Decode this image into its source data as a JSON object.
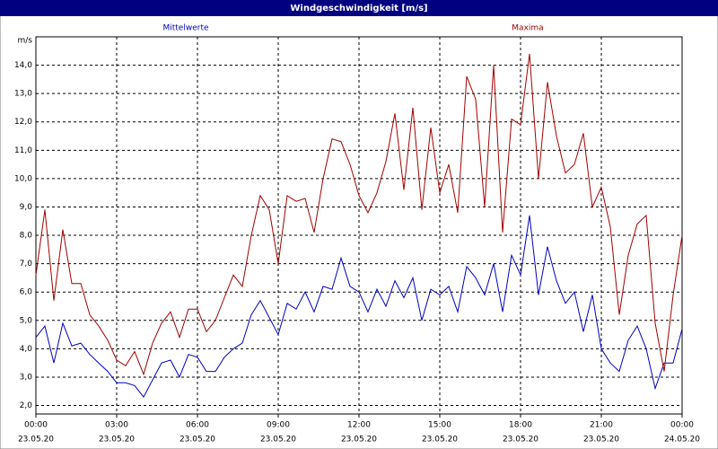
{
  "chart_data": {
    "type": "line",
    "title": "Windgeschwindigkeit [m/s]",
    "y_label": "m/s",
    "x": [
      0,
      20,
      40,
      60,
      80,
      100,
      120,
      140,
      160,
      180,
      200,
      220,
      240,
      260,
      280,
      300,
      320,
      340,
      360,
      380,
      400,
      420,
      440,
      460,
      480,
      500,
      520,
      540,
      560,
      580,
      600,
      620,
      640,
      660,
      680,
      700,
      720,
      740,
      760,
      780,
      800,
      820,
      840,
      860,
      880,
      900,
      920,
      940,
      960,
      980,
      1000,
      1020,
      1040,
      1060,
      1080,
      1100,
      1120,
      1140,
      1160,
      1180,
      1200,
      1220,
      1240,
      1260,
      1280,
      1300,
      1320,
      1340,
      1360,
      1380,
      1400,
      1420,
      1440
    ],
    "series": [
      {
        "name": "Mittelwerte",
        "color": "#0000c0",
        "values": [
          4.4,
          4.8,
          3.5,
          4.9,
          4.1,
          4.2,
          3.8,
          3.5,
          3.2,
          2.8,
          2.8,
          2.7,
          2.3,
          2.9,
          3.5,
          3.6,
          3.0,
          3.8,
          3.7,
          3.2,
          3.2,
          3.7,
          4.0,
          4.2,
          5.2,
          5.7,
          5.1,
          4.5,
          5.6,
          5.4,
          6.0,
          5.3,
          6.2,
          6.1,
          7.2,
          6.2,
          6.0,
          5.3,
          6.1,
          5.5,
          6.4,
          5.8,
          6.5,
          5.0,
          6.1,
          5.9,
          6.2,
          5.3,
          6.9,
          6.5,
          5.9,
          7.0,
          5.3,
          7.3,
          6.6,
          8.7,
          5.9,
          7.6,
          6.4,
          5.6,
          6.0,
          4.6,
          5.9,
          4.0,
          3.5,
          3.2,
          4.3,
          4.8,
          4.0,
          2.6,
          3.5,
          3.5,
          4.7
        ]
      },
      {
        "name": "Maxima",
        "color": "#a00000",
        "values": [
          6.6,
          8.9,
          5.7,
          8.2,
          6.3,
          6.3,
          5.2,
          4.8,
          4.3,
          3.6,
          3.4,
          3.9,
          3.1,
          4.2,
          4.9,
          5.3,
          4.4,
          5.4,
          5.4,
          4.6,
          5.0,
          5.8,
          6.6,
          6.2,
          8.0,
          9.4,
          8.9,
          7.0,
          9.4,
          9.2,
          9.3,
          8.1,
          10.0,
          11.4,
          11.3,
          10.5,
          9.4,
          8.8,
          9.5,
          10.6,
          12.3,
          9.6,
          12.5,
          8.9,
          11.8,
          9.5,
          10.5,
          8.8,
          13.6,
          12.8,
          9.0,
          14.0,
          8.1,
          12.1,
          11.9,
          14.4,
          10.0,
          13.4,
          11.5,
          10.2,
          10.5,
          11.6,
          9.0,
          9.7,
          8.3,
          5.2,
          7.3,
          8.4,
          8.7,
          4.9,
          3.2,
          5.9,
          8.0
        ]
      }
    ],
    "xlim": [
      0,
      1440
    ],
    "xticks": [
      {
        "value": 0,
        "label": "00:00"
      },
      {
        "value": 180,
        "label": "03:00"
      },
      {
        "value": 360,
        "label": "06:00"
      },
      {
        "value": 540,
        "label": "09:00"
      },
      {
        "value": 720,
        "label": "12:00"
      },
      {
        "value": 900,
        "label": "15:00"
      },
      {
        "value": 1080,
        "label": "18:00"
      },
      {
        "value": 1260,
        "label": "21:00"
      },
      {
        "value": 1440,
        "label": "00:00"
      }
    ],
    "xtick_dates": [
      "23.05.20",
      "23.05.20",
      "23.05.20",
      "23.05.20",
      "23.05.20",
      "23.05.20",
      "23.05.20",
      "23.05.20",
      "24.05.20"
    ],
    "ylim": [
      1.7,
      15.0
    ],
    "yticks": [
      {
        "value": 2,
        "label": "2,0"
      },
      {
        "value": 3,
        "label": "3,0"
      },
      {
        "value": 4,
        "label": "4,0"
      },
      {
        "value": 5,
        "label": "5,0"
      },
      {
        "value": 6,
        "label": "6,0"
      },
      {
        "value": 7,
        "label": "7,0"
      },
      {
        "value": 8,
        "label": "8,0"
      },
      {
        "value": 9,
        "label": "9,0"
      },
      {
        "value": 10,
        "label": "10,0"
      },
      {
        "value": 11,
        "label": "11,0"
      },
      {
        "value": 12,
        "label": "12,0"
      },
      {
        "value": 13,
        "label": "13,0"
      },
      {
        "value": 14,
        "label": "14,0"
      }
    ],
    "grid": true
  }
}
